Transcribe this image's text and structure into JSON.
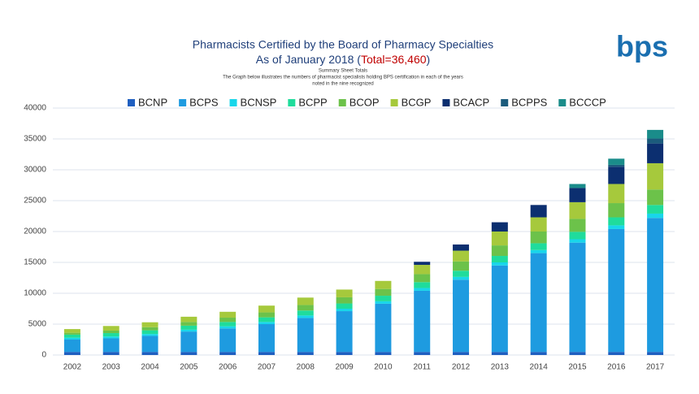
{
  "logo": "bps",
  "chart_data": {
    "type": "bar",
    "stacked": true,
    "title": "Pharmacists Certified by the Board of Pharmacy Specialties",
    "title_line2_start": "As of January 2018 (",
    "title_total": "Total=36,460",
    "title_line2_end": ")",
    "subtitle": [
      "Summary Sheet Totals",
      "The Graph below illustrates the numbers of pharmacist specialists holding BPS certification in each of the years",
      "noted in the nine recognized"
    ],
    "categories": [
      "2002",
      "2003",
      "2004",
      "2005",
      "2006",
      "2007",
      "2008",
      "2009",
      "2010",
      "2011",
      "2012",
      "2013",
      "2014",
      "2015",
      "2016",
      "2017"
    ],
    "series": [
      {
        "name": "BCNP",
        "color": "#1f5fc0",
        "values": [
          500,
          500,
          500,
          500,
          500,
          500,
          500,
          500,
          500,
          500,
          500,
          500,
          500,
          500,
          500,
          500
        ]
      },
      {
        "name": "BCPS",
        "color": "#1e9be0",
        "values": [
          2000,
          2200,
          2600,
          3300,
          3800,
          4500,
          5500,
          6600,
          7800,
          9900,
          11700,
          14000,
          16000,
          17700,
          19900,
          21700
        ]
      },
      {
        "name": "BCNSP",
        "color": "#18d6ea",
        "values": [
          300,
          300,
          300,
          300,
          350,
          350,
          400,
          400,
          400,
          450,
          450,
          500,
          500,
          550,
          600,
          700
        ]
      },
      {
        "name": "BCPP",
        "color": "#1fdc9c",
        "values": [
          500,
          550,
          600,
          650,
          700,
          750,
          800,
          850,
          900,
          950,
          1000,
          1050,
          1100,
          1200,
          1300,
          1400
        ]
      },
      {
        "name": "BCOP",
        "color": "#6cc24a",
        "values": [
          300,
          400,
          500,
          600,
          700,
          800,
          900,
          1000,
          1100,
          1300,
          1500,
          1700,
          1900,
          2100,
          2300,
          2500
        ]
      },
      {
        "name": "BCGP",
        "color": "#a6c93c",
        "values": [
          600,
          750,
          800,
          850,
          950,
          1100,
          1200,
          1250,
          1300,
          1500,
          1750,
          2250,
          2300,
          2700,
          3100,
          4260
        ]
      },
      {
        "name": "BCACP",
        "color": "#0c2f70",
        "values": [
          0,
          0,
          0,
          0,
          0,
          0,
          0,
          0,
          0,
          500,
          1000,
          1500,
          2000,
          2300,
          2800,
          3200
        ]
      },
      {
        "name": "BCPPS",
        "color": "#1b5b7c",
        "values": [
          0,
          0,
          0,
          0,
          0,
          0,
          0,
          0,
          0,
          0,
          0,
          0,
          0,
          0,
          300,
          800
        ]
      },
      {
        "name": "BCCCP",
        "color": "#1a8c8a",
        "values": [
          0,
          0,
          0,
          0,
          0,
          0,
          0,
          0,
          0,
          0,
          0,
          0,
          0,
          650,
          1000,
          1400
        ]
      }
    ],
    "ylim": [
      0,
      40000
    ],
    "yticks": [
      0,
      5000,
      10000,
      15000,
      20000,
      25000,
      30000,
      35000,
      40000
    ],
    "grid": true
  }
}
